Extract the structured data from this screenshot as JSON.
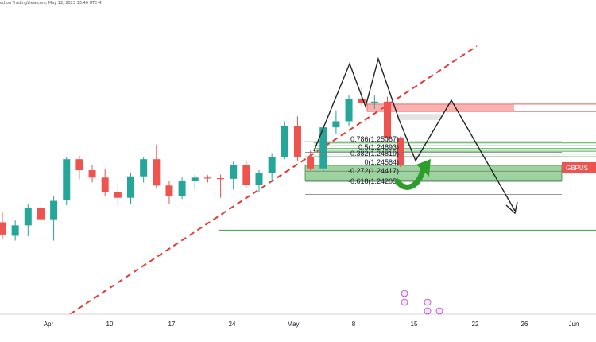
{
  "header": {
    "text": "ed on TradingView.com, May 12, 2023 13:46 UTC-4"
  },
  "symbol_tag": {
    "label": "GBPUS"
  },
  "chart_data": {
    "type": "candlestick",
    "title": "",
    "x_ticks": [
      "Apr",
      "10",
      "17",
      "24",
      "May",
      "8",
      "15",
      "22",
      "26",
      "Jun"
    ],
    "ylim": [
      1.2225,
      1.2725
    ],
    "candles": [
      {
        "o": 1.2375,
        "h": 1.2392,
        "l": 1.2348,
        "c": 1.2355
      },
      {
        "o": 1.2353,
        "h": 1.2378,
        "l": 1.2345,
        "c": 1.237
      },
      {
        "o": 1.237,
        "h": 1.2405,
        "l": 1.2352,
        "c": 1.2398
      },
      {
        "o": 1.2398,
        "h": 1.241,
        "l": 1.2375,
        "c": 1.238
      },
      {
        "o": 1.238,
        "h": 1.2418,
        "l": 1.2345,
        "c": 1.241
      },
      {
        "o": 1.2412,
        "h": 1.2482,
        "l": 1.2403,
        "c": 1.2478
      },
      {
        "o": 1.2478,
        "h": 1.2484,
        "l": 1.2445,
        "c": 1.246
      },
      {
        "o": 1.246,
        "h": 1.2468,
        "l": 1.244,
        "c": 1.2448
      },
      {
        "o": 1.2448,
        "h": 1.2462,
        "l": 1.2418,
        "c": 1.2425
      },
      {
        "o": 1.2425,
        "h": 1.2438,
        "l": 1.2402,
        "c": 1.2415
      },
      {
        "o": 1.2415,
        "h": 1.2455,
        "l": 1.2405,
        "c": 1.245
      },
      {
        "o": 1.245,
        "h": 1.2482,
        "l": 1.244,
        "c": 1.2478
      },
      {
        "o": 1.2478,
        "h": 1.2502,
        "l": 1.243,
        "c": 1.2435
      },
      {
        "o": 1.2435,
        "h": 1.2442,
        "l": 1.2405,
        "c": 1.2418
      },
      {
        "o": 1.2418,
        "h": 1.2448,
        "l": 1.2413,
        "c": 1.2442
      },
      {
        "o": 1.2442,
        "h": 1.2453,
        "l": 1.2427,
        "c": 1.2448
      },
      {
        "o": 1.2448,
        "h": 1.2452,
        "l": 1.244,
        "c": 1.2447
      },
      {
        "o": 1.2447,
        "h": 1.2453,
        "l": 1.2415,
        "c": 1.2446
      },
      {
        "o": 1.2446,
        "h": 1.2474,
        "l": 1.2428,
        "c": 1.2468
      },
      {
        "o": 1.2468,
        "h": 1.2476,
        "l": 1.243,
        "c": 1.2436
      },
      {
        "o": 1.2436,
        "h": 1.246,
        "l": 1.2425,
        "c": 1.2455
      },
      {
        "o": 1.2455,
        "h": 1.2488,
        "l": 1.2442,
        "c": 1.2482
      },
      {
        "o": 1.2482,
        "h": 1.254,
        "l": 1.2478,
        "c": 1.2532
      },
      {
        "o": 1.2532,
        "h": 1.2548,
        "l": 1.2475,
        "c": 1.2482
      },
      {
        "o": 1.2482,
        "h": 1.2492,
        "l": 1.246,
        "c": 1.2463
      },
      {
        "o": 1.2463,
        "h": 1.2535,
        "l": 1.2458,
        "c": 1.253
      },
      {
        "o": 1.253,
        "h": 1.2558,
        "l": 1.252,
        "c": 1.254
      },
      {
        "o": 1.254,
        "h": 1.2582,
        "l": 1.2533,
        "c": 1.2577
      },
      {
        "o": 1.2577,
        "h": 1.2595,
        "l": 1.2565,
        "c": 1.257
      },
      {
        "o": 1.257,
        "h": 1.2582,
        "l": 1.256,
        "c": 1.2572
      },
      {
        "o": 1.2572,
        "h": 1.258,
        "l": 1.2505,
        "c": 1.2512
      },
      {
        "o": 1.2512,
        "h": 1.2515,
        "l": 1.2465,
        "c": 1.2468
      }
    ],
    "fib_levels": [
      {
        "label": "0.786(1.25067)",
        "value": 1.25067
      },
      {
        "label": "0.5(1.24893)",
        "value": 1.24893
      },
      {
        "label": "0.382(1.24819)",
        "value": 1.24819
      },
      {
        "label": "0(1.24584)",
        "value": 1.24584
      },
      {
        "label": "-0.272(1.24417)",
        "value": 1.24417
      },
      {
        "label": "-0.618(1.24205)",
        "value": 1.24205
      }
    ],
    "zones": [
      {
        "type": "supply",
        "from": 1.2556,
        "to": 1.2568
      },
      {
        "type": "demand",
        "from": 1.2444,
        "to": 1.2468
      }
    ],
    "support_line": 1.2362,
    "current_price": 1.2459,
    "colors": {
      "up": "#26a69a",
      "down": "#ef5350",
      "supply": "#ef5350",
      "demand": "#4caf50",
      "trend": "#e53935",
      "path": "#222222"
    }
  }
}
